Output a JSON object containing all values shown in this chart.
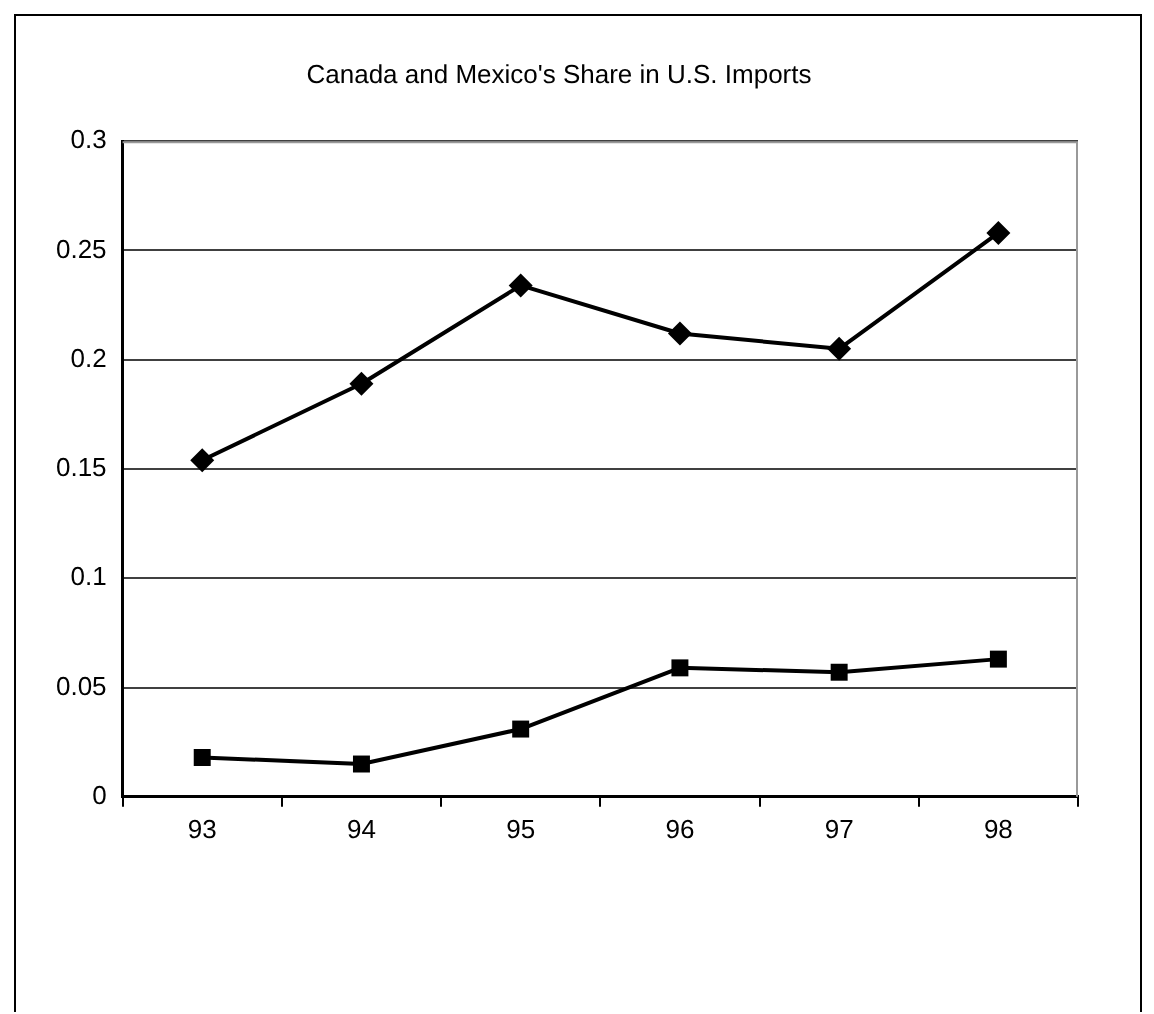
{
  "chart_data": {
    "type": "line",
    "title": "Canada and Mexico's Share in U.S. Imports",
    "categories": [
      "93",
      "94",
      "95",
      "96",
      "97",
      "98"
    ],
    "series": [
      {
        "color": "#000000",
        "marker": "diamond",
        "values": [
          0.154,
          0.189,
          0.234,
          0.212,
          0.205,
          0.258
        ]
      },
      {
        "color": "#000000",
        "marker": "square",
        "values": [
          0.018,
          0.015,
          0.031,
          0.059,
          0.057,
          0.063
        ]
      }
    ],
    "ylim": [
      0,
      0.3
    ],
    "yticks": [
      0,
      0.05,
      0.1,
      0.15,
      0.2,
      0.25,
      0.3
    ],
    "grid": "y",
    "legend": false
  }
}
